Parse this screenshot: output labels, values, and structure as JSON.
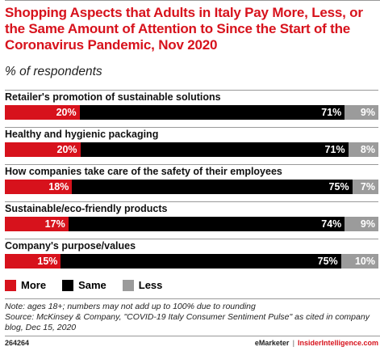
{
  "chart_data": {
    "type": "bar",
    "stacked": true,
    "orientation": "horizontal",
    "title": "Shopping Aspects that Adults in Italy Pay More, Less, or the Same Amount of Attention to Since the Start of the Coronavirus Pandemic, Nov 2020",
    "subtitle": "% of respondents",
    "categories": [
      "Retailer's promotion of sustainable solutions",
      "Healthy and hygienic packaging",
      "How companies take care of the safety of their employees",
      "Sustainable/eco-friendly products",
      "Company's purpose/values"
    ],
    "series": [
      {
        "name": "More",
        "values": [
          20,
          20,
          18,
          17,
          15
        ],
        "color": "#d7121c"
      },
      {
        "name": "Same",
        "values": [
          71,
          71,
          75,
          74,
          75
        ],
        "color": "#000000"
      },
      {
        "name": "Less",
        "values": [
          9,
          8,
          7,
          9,
          10
        ],
        "color": "#9b9b9b"
      }
    ],
    "value_suffix": "%",
    "legend_position": "bottom-left"
  },
  "note": "Note: ages 18+; numbers may not add up to 100% due to rounding",
  "source": "Source: McKinsey & Company, \"COVID-19 Italy Consumer Sentiment Pulse\" as cited in company blog, Dec 15, 2020",
  "footer": {
    "chart_id": "264264",
    "brand": "eMarketer",
    "separator": "|",
    "site": "InsiderIntelligence.com"
  }
}
